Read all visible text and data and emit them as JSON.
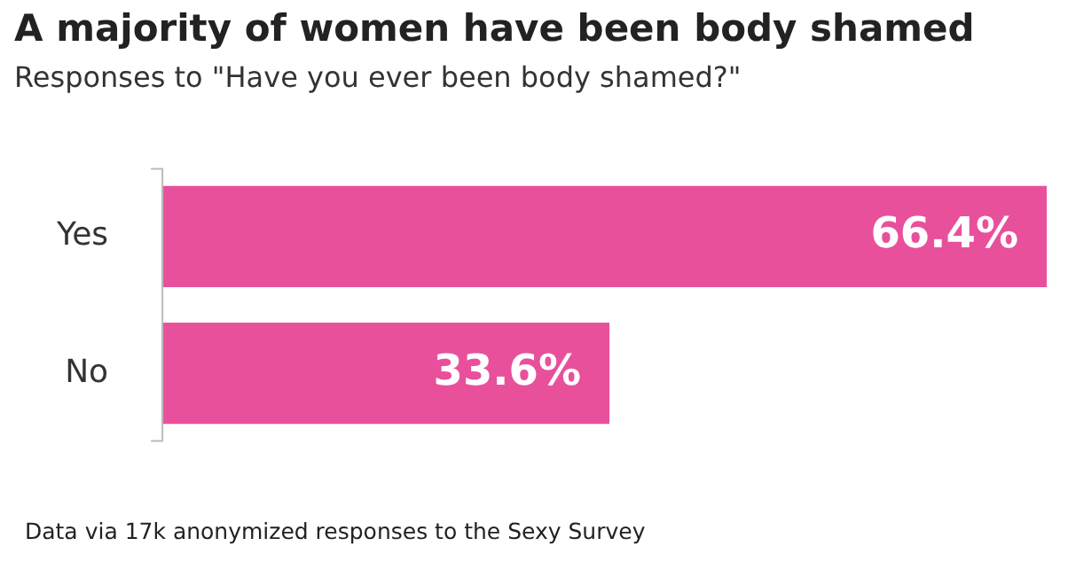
{
  "chart_data": {
    "type": "bar",
    "orientation": "horizontal",
    "title": "A majority of women have been body shamed",
    "subtitle": "Responses to \"Have you ever been body shamed?\"",
    "categories": [
      "Yes",
      "No"
    ],
    "values": [
      66.4,
      33.6
    ],
    "value_labels": [
      "66.4%",
      "33.6%"
    ],
    "color": "#e8509c",
    "xlim": [
      0,
      66.4
    ],
    "tick_labels": "y",
    "legend": false,
    "annotations": [
      "Data via 17k anonymized responses to the Sexy Survey"
    ]
  }
}
